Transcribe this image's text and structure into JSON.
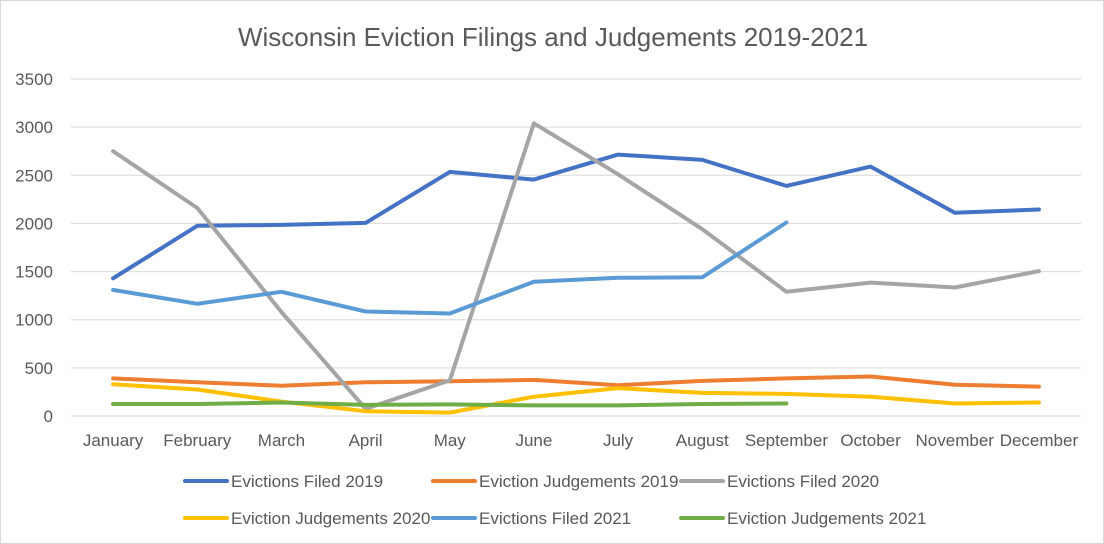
{
  "chart_data": {
    "type": "line",
    "title": "Wisconsin Eviction Filings and Judgements 2019-2021",
    "xlabel": "",
    "ylabel": "",
    "ylim": [
      0,
      3500
    ],
    "yticks": [
      "0",
      "500",
      "1000",
      "1500",
      "2000",
      "2500",
      "3000",
      "3500"
    ],
    "categories": [
      "January",
      "February",
      "March",
      "April",
      "May",
      "June",
      "July",
      "August",
      "September",
      "October",
      "November",
      "December"
    ],
    "grid": "horizontal",
    "legend_position": "bottom",
    "series": [
      {
        "name": "Evictions Filed 2019",
        "color": "#4472c4",
        "values": [
          1430,
          1975,
          1985,
          2005,
          2535,
          2455,
          2715,
          2660,
          2390,
          2590,
          2110,
          2145
        ]
      },
      {
        "name": "Eviction Judgements 2019",
        "color": "#ed7d31",
        "values": [
          390,
          350,
          315,
          350,
          360,
          375,
          320,
          365,
          390,
          410,
          325,
          305
        ]
      },
      {
        "name": "Evictions Filed 2020",
        "color": "#a5a5a5",
        "values": [
          2750,
          2160,
          1080,
          75,
          370,
          3040,
          2510,
          1940,
          1290,
          1385,
          1335,
          1505
        ]
      },
      {
        "name": "Eviction Judgements 2020",
        "color": "#ffc000",
        "values": [
          330,
          275,
          150,
          50,
          35,
          200,
          290,
          240,
          230,
          200,
          130,
          140
        ]
      },
      {
        "name": "Evictions Filed 2021",
        "color": "#5b9bd5",
        "values": [
          1310,
          1165,
          1290,
          1085,
          1065,
          1395,
          1435,
          1440,
          2010,
          null,
          null,
          null
        ]
      },
      {
        "name": "Eviction Judgements 2021",
        "color": "#70ad47",
        "values": [
          125,
          125,
          140,
          115,
          120,
          110,
          110,
          125,
          130,
          null,
          null,
          null
        ]
      }
    ]
  }
}
